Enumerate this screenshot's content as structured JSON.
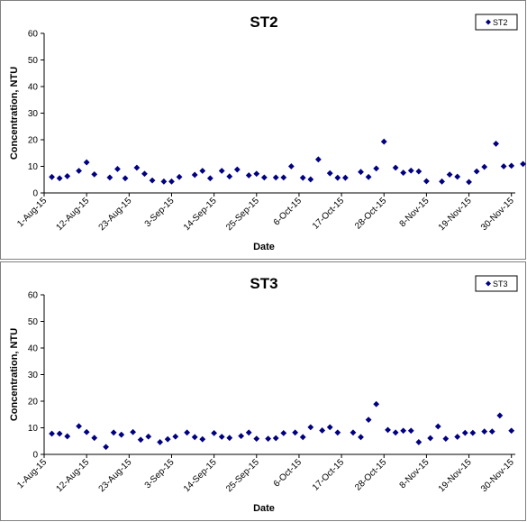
{
  "chart_data": [
    {
      "type": "scatter",
      "title": "ST2",
      "xlabel": "Date",
      "ylabel": "Concentration, NTU",
      "ylim": [
        0,
        60
      ],
      "yticks": [
        0,
        10,
        20,
        30,
        40,
        50,
        60
      ],
      "xlim": [
        "2015-08-01",
        "2015-12-01"
      ],
      "xticks": [
        "1-Aug-15",
        "12-Aug-15",
        "23-Aug-15",
        "3-Sep-15",
        "14-Sep-15",
        "25-Sep-15",
        "6-Oct-15",
        "17-Oct-15",
        "28-Oct-15",
        "8-Nov-15",
        "19-Nov-15",
        "30-Nov-15"
      ],
      "grid": false,
      "legend": "top-right",
      "marker_color": "#000080",
      "series": [
        {
          "name": "ST2",
          "points": [
            [
              "2015-08-03",
              6.0
            ],
            [
              "2015-08-05",
              5.5
            ],
            [
              "2015-08-07",
              6.3
            ],
            [
              "2015-08-10",
              8.3
            ],
            [
              "2015-08-12",
              11.5
            ],
            [
              "2015-08-14",
              7.0
            ],
            [
              "2015-08-18",
              5.8
            ],
            [
              "2015-08-20",
              9.0
            ],
            [
              "2015-08-22",
              5.5
            ],
            [
              "2015-08-25",
              9.5
            ],
            [
              "2015-08-27",
              7.2
            ],
            [
              "2015-08-29",
              4.7
            ],
            [
              "2015-09-01",
              4.3
            ],
            [
              "2015-09-03",
              4.3
            ],
            [
              "2015-09-05",
              6.0
            ],
            [
              "2015-09-09",
              6.8
            ],
            [
              "2015-09-11",
              8.3
            ],
            [
              "2015-09-13",
              5.5
            ],
            [
              "2015-09-16",
              8.3
            ],
            [
              "2015-09-18",
              6.2
            ],
            [
              "2015-09-20",
              8.8
            ],
            [
              "2015-09-23",
              6.6
            ],
            [
              "2015-09-25",
              7.2
            ],
            [
              "2015-09-27",
              5.8
            ],
            [
              "2015-09-30",
              5.8
            ],
            [
              "2015-10-02",
              5.8
            ],
            [
              "2015-10-04",
              10.0
            ],
            [
              "2015-10-07",
              5.7
            ],
            [
              "2015-10-09",
              5.1
            ],
            [
              "2015-10-11",
              12.6
            ],
            [
              "2015-10-14",
              7.4
            ],
            [
              "2015-10-16",
              5.7
            ],
            [
              "2015-10-18",
              5.7
            ],
            [
              "2015-10-22",
              7.9
            ],
            [
              "2015-10-24",
              6.0
            ],
            [
              "2015-10-26",
              9.2
            ],
            [
              "2015-10-28",
              19.3
            ],
            [
              "2015-10-31",
              9.5
            ],
            [
              "2015-11-02",
              7.6
            ],
            [
              "2015-11-04",
              8.4
            ],
            [
              "2015-11-06",
              8.1
            ],
            [
              "2015-11-08",
              4.4
            ],
            [
              "2015-11-12",
              4.3
            ],
            [
              "2015-11-14",
              6.9
            ],
            [
              "2015-11-16",
              6.1
            ],
            [
              "2015-11-19",
              4.1
            ],
            [
              "2015-11-21",
              8.1
            ],
            [
              "2015-11-23",
              9.8
            ],
            [
              "2015-11-26",
              18.5
            ],
            [
              "2015-11-28",
              10.0
            ],
            [
              "2015-11-30",
              10.2
            ],
            [
              "2015-12-03",
              10.9
            ]
          ]
        }
      ]
    },
    {
      "type": "scatter",
      "title": "ST3",
      "xlabel": "Date",
      "ylabel": "Concentration, NTU",
      "ylim": [
        0,
        60
      ],
      "yticks": [
        0,
        10,
        20,
        30,
        40,
        50,
        60
      ],
      "xlim": [
        "2015-08-01",
        "2015-12-01"
      ],
      "xticks": [
        "1-Aug-15",
        "12-Aug-15",
        "23-Aug-15",
        "3-Sep-15",
        "14-Sep-15",
        "25-Sep-15",
        "6-Oct-15",
        "17-Oct-15",
        "28-Oct-15",
        "8-Nov-15",
        "19-Nov-15",
        "30-Nov-15"
      ],
      "grid": false,
      "legend": "top-right",
      "marker_color": "#000080",
      "series": [
        {
          "name": "ST3",
          "points": [
            [
              "2015-08-03",
              7.8
            ],
            [
              "2015-08-05",
              7.8
            ],
            [
              "2015-08-07",
              6.8
            ],
            [
              "2015-08-10",
              10.6
            ],
            [
              "2015-08-12",
              8.4
            ],
            [
              "2015-08-14",
              6.2
            ],
            [
              "2015-08-17",
              2.8
            ],
            [
              "2015-08-19",
              8.2
            ],
            [
              "2015-08-21",
              7.4
            ],
            [
              "2015-08-24",
              8.4
            ],
            [
              "2015-08-26",
              5.5
            ],
            [
              "2015-08-28",
              6.7
            ],
            [
              "2015-08-31",
              4.6
            ],
            [
              "2015-09-02",
              5.7
            ],
            [
              "2015-09-04",
              6.7
            ],
            [
              "2015-09-07",
              8.2
            ],
            [
              "2015-09-09",
              6.5
            ],
            [
              "2015-09-11",
              5.7
            ],
            [
              "2015-09-14",
              8.0
            ],
            [
              "2015-09-16",
              6.6
            ],
            [
              "2015-09-18",
              6.2
            ],
            [
              "2015-09-21",
              6.9
            ],
            [
              "2015-09-23",
              8.2
            ],
            [
              "2015-09-25",
              5.9
            ],
            [
              "2015-09-28",
              5.9
            ],
            [
              "2015-09-30",
              6.1
            ],
            [
              "2015-10-02",
              8.0
            ],
            [
              "2015-10-05",
              8.2
            ],
            [
              "2015-10-07",
              6.5
            ],
            [
              "2015-10-09",
              10.2
            ],
            [
              "2015-10-12",
              9.0
            ],
            [
              "2015-10-14",
              10.2
            ],
            [
              "2015-10-16",
              8.2
            ],
            [
              "2015-10-20",
              8.2
            ],
            [
              "2015-10-22",
              6.5
            ],
            [
              "2015-10-24",
              13.0
            ],
            [
              "2015-10-26",
              18.9
            ],
            [
              "2015-10-29",
              9.2
            ],
            [
              "2015-10-31",
              8.2
            ],
            [
              "2015-11-02",
              8.9
            ],
            [
              "2015-11-04",
              8.9
            ],
            [
              "2015-11-06",
              4.6
            ],
            [
              "2015-11-09",
              6.1
            ],
            [
              "2015-11-11",
              10.5
            ],
            [
              "2015-11-13",
              5.9
            ],
            [
              "2015-11-16",
              6.6
            ],
            [
              "2015-11-18",
              8.1
            ],
            [
              "2015-11-20",
              8.1
            ],
            [
              "2015-11-23",
              8.6
            ],
            [
              "2015-11-25",
              8.6
            ],
            [
              "2015-11-27",
              14.6
            ],
            [
              "2015-11-30",
              8.9
            ]
          ]
        }
      ]
    }
  ]
}
